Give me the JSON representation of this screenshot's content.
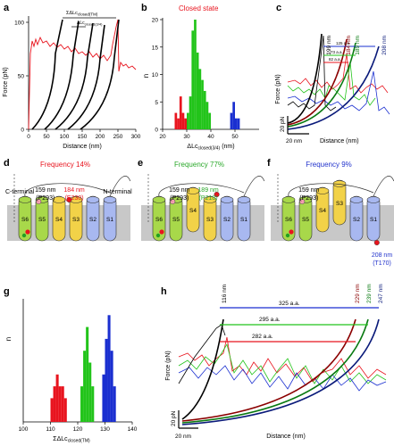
{
  "colors": {
    "red": "#e8141e",
    "green": "#22c41a",
    "blue": "#1a2fd0",
    "black": "#000000",
    "membrane": "#c8c8c8",
    "helix_yellow": "#f2d248",
    "helix_green": "#a8d84a",
    "helix_blue": "#a8b8f0",
    "label_red": "#e8141e",
    "label_green": "#2aa82a",
    "label_blue": "#2233cc"
  },
  "panels": {
    "a": {
      "letter": "a",
      "ylabel": "Force (pN)",
      "xlabel": "Distance (nm)",
      "xticks": [
        "0",
        "50",
        "100",
        "150",
        "200",
        "250",
        "300"
      ],
      "yticks": [
        "0",
        "50",
        "100"
      ],
      "annotation_1": "ΣΔLc",
      "annotation_1_sub": "closed(TM)",
      "annotation_2": "ΔLc",
      "annotation_2_sub": "closed(3/4)"
    },
    "b": {
      "letter": "b",
      "title": "Closed state",
      "ylabel": "n",
      "xlabel": "ΔLc",
      "xlabel_sub": "closed(3/4)",
      "xlabel_unit": "(nm)",
      "xticks": [
        "20",
        "30",
        "40",
        "50"
      ],
      "yticks": [
        "0",
        "5",
        "10",
        "15",
        "20"
      ]
    },
    "c": {
      "letter": "c",
      "ylabel": "Force (pN)",
      "xlabel": "Distance (nm)",
      "scale_y": "20 pN",
      "scale_x": "20 nm",
      "curve_labels": [
        "199 nm",
        "184 nm",
        "189 nm",
        "208 nm"
      ],
      "aa_labels": [
        "125 a.a.",
        "73 a.a.",
        "82 a.a."
      ]
    },
    "d": {
      "letter": "d",
      "frequency": "Frequency 14%",
      "c_terminal": "C-terminal",
      "n_terminal": "N-terminal",
      "len_black": "159 nm",
      "res_black": "(P293)",
      "len_color": "184 nm",
      "res_color": "(E230)",
      "helices": [
        "S6",
        "S5",
        "S4",
        "S3",
        "S2",
        "S1"
      ]
    },
    "e": {
      "letter": "e",
      "frequency": "Frequency 77%",
      "len_black": "159 nm",
      "res_black": "(P293)",
      "len_color": "189 nm",
      "res_color": "(P218)",
      "helices": [
        "S6",
        "S5",
        "S4",
        "S3",
        "S2",
        "S1"
      ]
    },
    "f": {
      "letter": "f",
      "frequency": "Frequency 9%",
      "len_black": "159 nm",
      "res_black": "(P293)",
      "len_color": "208 nm",
      "res_color": "(T170)",
      "helices": [
        "S6",
        "S5",
        "S4",
        "S3",
        "S2",
        "S1"
      ]
    },
    "g": {
      "letter": "g",
      "ylabel": "n",
      "xlabel": "ΣΔLc",
      "xlabel_sub": "closed(TM)",
      "xticks": [
        "100",
        "110",
        "120",
        "130",
        "140"
      ]
    },
    "h": {
      "letter": "h",
      "ylabel": "Force (pN)",
      "xlabel": "Distance (nm)",
      "scale_y": "20 pN",
      "scale_x": "20 nm",
      "curve_labels": [
        "116 nm",
        "229 nm",
        "239 nm",
        "247 nm"
      ],
      "aa_labels": [
        "325 a.a.",
        "295 a.a.",
        "282 a.a."
      ]
    }
  },
  "chart_data": [
    {
      "panel": "b",
      "type": "bar",
      "title": "Closed state",
      "xlabel": "ΔLc closed(3/4) (nm)",
      "ylabel": "n",
      "xlim": [
        20,
        60
      ],
      "ylim": [
        0,
        20
      ],
      "series": [
        {
          "name": "",
          "color": "#e8141e",
          "bins": [
            25.5,
            26.5,
            27.5,
            28.5,
            29.5
          ],
          "values": [
            3,
            2,
            6,
            3,
            2
          ]
        },
        {
          "name": "",
          "color": "#22c41a",
          "bins": [
            30.5,
            31.5,
            32.5,
            33.5,
            34.5,
            35.5,
            36.5,
            37.5,
            38.5,
            39.5
          ],
          "values": [
            3,
            6,
            18,
            20,
            14,
            11,
            9,
            7,
            5,
            3
          ]
        },
        {
          "name": "",
          "color": "#1a2fd0",
          "bins": [
            48.5,
            49.5,
            50.5,
            51.5
          ],
          "values": [
            3,
            5,
            2,
            2
          ]
        }
      ]
    },
    {
      "panel": "g",
      "type": "bar",
      "xlabel": "ΣΔLc closed(TM)",
      "ylabel": "n",
      "xlim": [
        100,
        140
      ],
      "series": [
        {
          "name": "",
          "color": "#e8141e",
          "bins": [
            110.5,
            111.5,
            112.5,
            113.5,
            114.5,
            115.5
          ],
          "values": [
            2,
            3,
            4,
            3,
            3,
            2
          ]
        },
        {
          "name": "",
          "color": "#22c41a",
          "bins": [
            121.5,
            122.5,
            123.5,
            124.5,
            125.5
          ],
          "values": [
            3,
            6,
            8,
            5,
            3
          ]
        },
        {
          "name": "",
          "color": "#1a2fd0",
          "bins": [
            129.5,
            130.5,
            131.5,
            132.5,
            133.5
          ],
          "values": [
            4,
            7,
            9,
            6,
            3
          ]
        }
      ]
    }
  ]
}
